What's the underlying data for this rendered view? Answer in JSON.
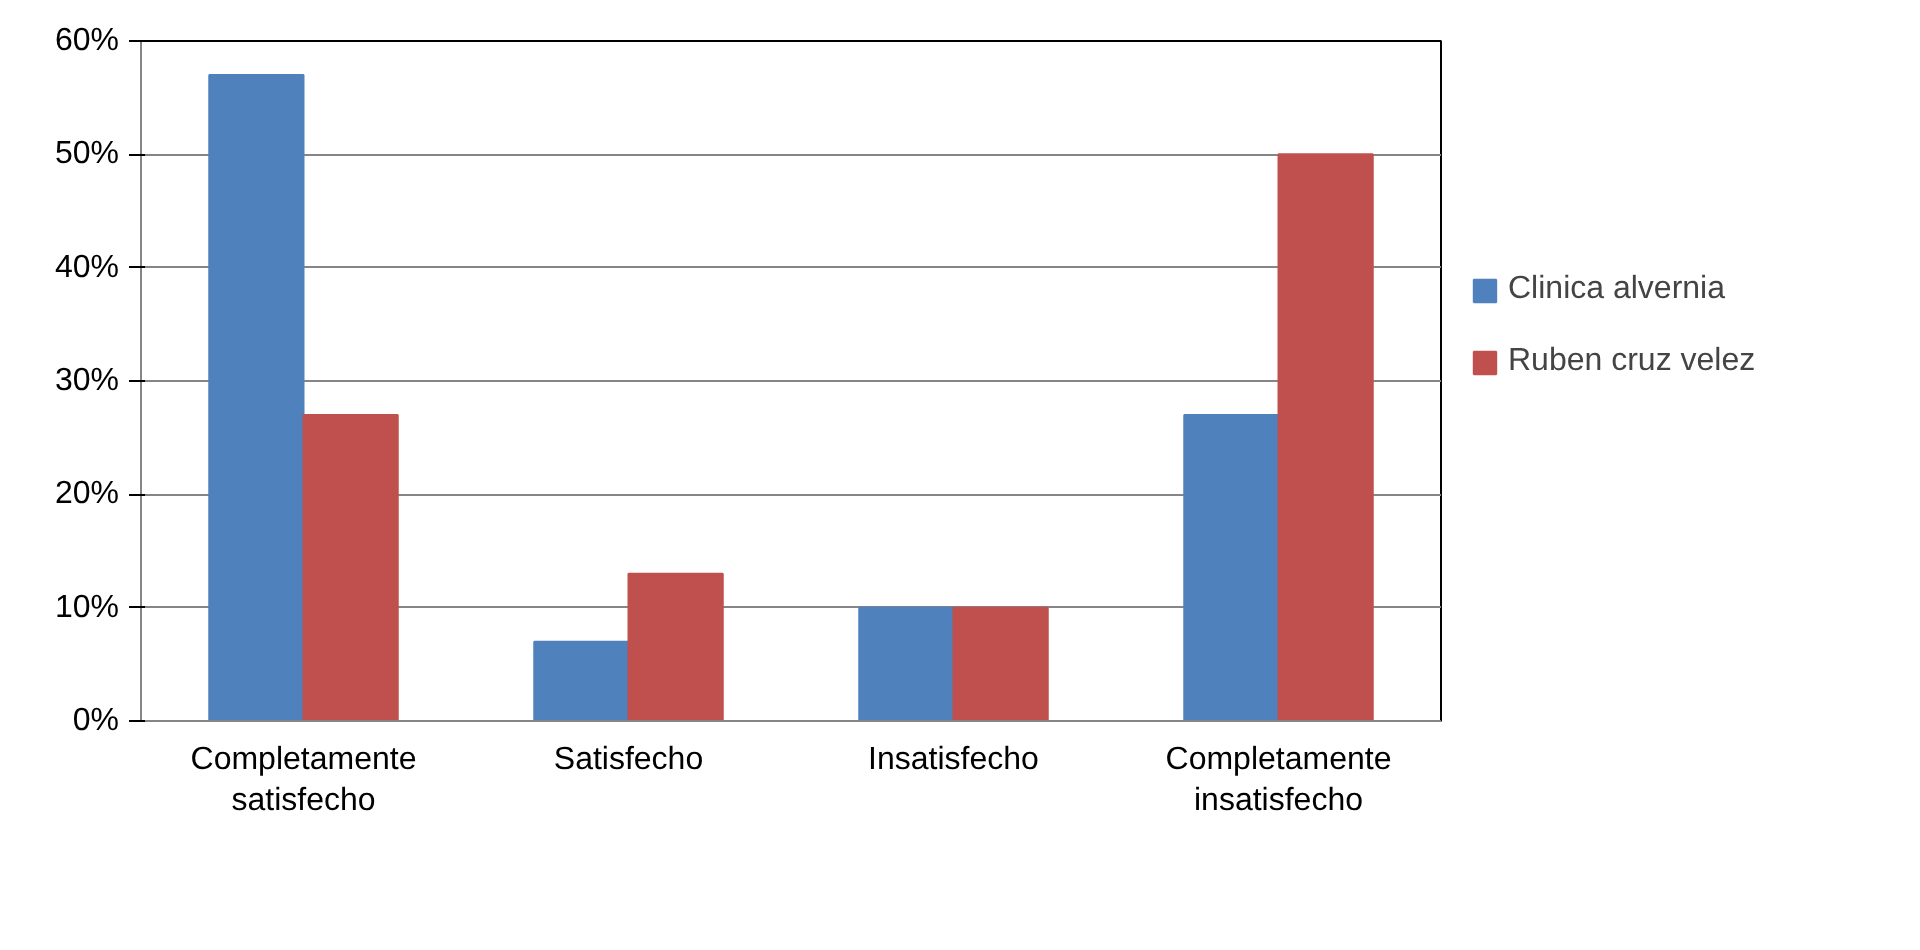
{
  "chart_data": {
    "type": "bar",
    "categories": [
      "Completamente\nsatisfecho",
      "Satisfecho",
      "Insatisfecho",
      "Completamente\ninsatisfecho"
    ],
    "series": [
      {
        "name": "Clinica alvernia",
        "color": "#4f81bd",
        "values": [
          57,
          7,
          10,
          27
        ]
      },
      {
        "name": "Ruben cruz velez",
        "color": "#c0504d",
        "values": [
          27,
          13,
          10,
          50
        ]
      }
    ],
    "ylim": [
      0,
      60
    ],
    "yticks": [
      {
        "value": 0,
        "label": "0%"
      },
      {
        "value": 10,
        "label": "10%"
      },
      {
        "value": 20,
        "label": "20%"
      },
      {
        "value": 30,
        "label": "30%"
      },
      {
        "value": 40,
        "label": "40%"
      },
      {
        "value": 50,
        "label": "50%"
      },
      {
        "value": 60,
        "label": "60%"
      }
    ],
    "grid": "y",
    "legend": "right"
  }
}
